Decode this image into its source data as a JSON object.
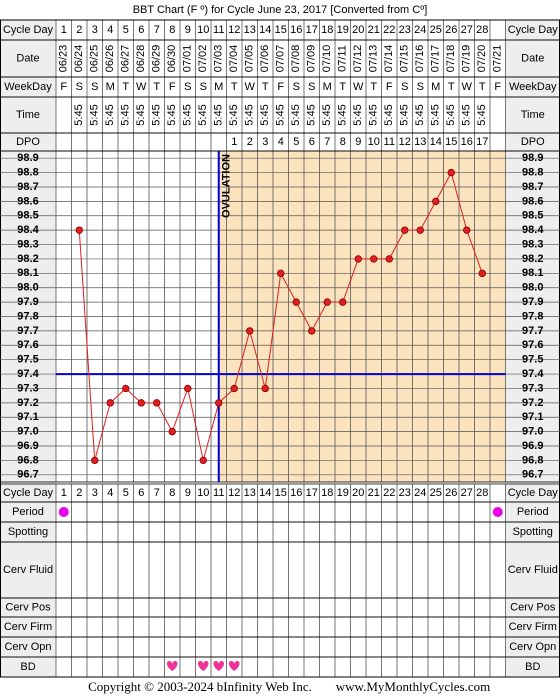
{
  "chart_data": {
    "type": "line",
    "title": "BBT Chart (F º) for Cycle June 23, 2017  [Converted from Cº]",
    "top_rows": [
      "Cycle Day",
      "Date",
      "WeekDay",
      "Time",
      "DPO"
    ],
    "bottom_rows": [
      "Cycle Day",
      "Period",
      "Spotting",
      "Cerv Fluid",
      "Cerv Pos",
      "Cerv Firm",
      "Cerv Opn",
      "BD"
    ],
    "cycle_days": [
      1,
      2,
      3,
      4,
      5,
      6,
      7,
      8,
      9,
      10,
      11,
      12,
      13,
      14,
      15,
      16,
      17,
      18,
      19,
      20,
      21,
      22,
      23,
      24,
      25,
      26,
      27,
      28,
      null
    ],
    "dates": [
      "06/23",
      "06/24",
      "06/25",
      "06/26",
      "06/27",
      "06/28",
      "06/29",
      "06/30",
      "07/01",
      "07/02",
      "07/03",
      "07/04",
      "07/05",
      "07/06",
      "07/07",
      "07/08",
      "07/09",
      "07/10",
      "07/11",
      "07/12",
      "07/13",
      "07/14",
      "07/15",
      "07/16",
      "07/17",
      "07/18",
      "07/19",
      "07/20",
      "07/21"
    ],
    "weekdays": [
      "F",
      "S",
      "S",
      "M",
      "T",
      "W",
      "T",
      "F",
      "S",
      "S",
      "M",
      "T",
      "W",
      "T",
      "F",
      "S",
      "S",
      "M",
      "T",
      "W",
      "T",
      "F",
      "S",
      "S",
      "M",
      "T",
      "W",
      "T",
      "F"
    ],
    "times": [
      null,
      "5:45",
      "5:45",
      "5:45",
      "5:45",
      "5:45",
      "5:45",
      "5:45",
      "5:45",
      "5:45",
      "5:45",
      "5:45",
      "5:45",
      "5:45",
      "5:45",
      "5:45",
      "5:45",
      "5:45",
      "5:45",
      "5:45",
      "5:45",
      "5:45",
      "5:45",
      "5:45",
      "5:45",
      "5:45",
      "5:45",
      "5:45",
      null
    ],
    "dpo": [
      null,
      null,
      null,
      null,
      null,
      null,
      null,
      null,
      null,
      null,
      null,
      1,
      2,
      3,
      4,
      5,
      6,
      7,
      8,
      9,
      10,
      11,
      12,
      13,
      14,
      15,
      16,
      17,
      null
    ],
    "values": [
      null,
      98.4,
      96.8,
      97.2,
      97.3,
      97.2,
      97.2,
      97.0,
      97.3,
      96.8,
      97.2,
      97.3,
      97.7,
      97.3,
      98.1,
      97.9,
      97.7,
      97.9,
      97.9,
      98.2,
      98.2,
      98.2,
      98.4,
      98.4,
      98.6,
      98.8,
      98.4,
      98.1,
      null
    ],
    "color": "#e02020",
    "ylim": [
      96.65,
      98.95
    ],
    "yticks": [
      98.9,
      98.8,
      98.7,
      98.6,
      98.5,
      98.4,
      98.3,
      98.2,
      98.1,
      {
        "value": 98.0,
        "label": "98.0"
      },
      97.9,
      97.8,
      97.7,
      97.6,
      97.5,
      97.4,
      97.3,
      97.2,
      97.1,
      {
        "value": 97.0,
        "label": "97.0"
      },
      96.9,
      96.8,
      96.7
    ],
    "grid": true,
    "coverline": 97.4,
    "ovulation_day": 11,
    "ovulation_label": "OVULATION",
    "period_days": [
      1,
      29
    ],
    "bd_days": [
      8,
      10,
      11,
      12
    ],
    "copyright": "Copyright © 2003-2024 bInfinity Web Inc.",
    "site": "www.MyMonthlyCycles.com"
  }
}
